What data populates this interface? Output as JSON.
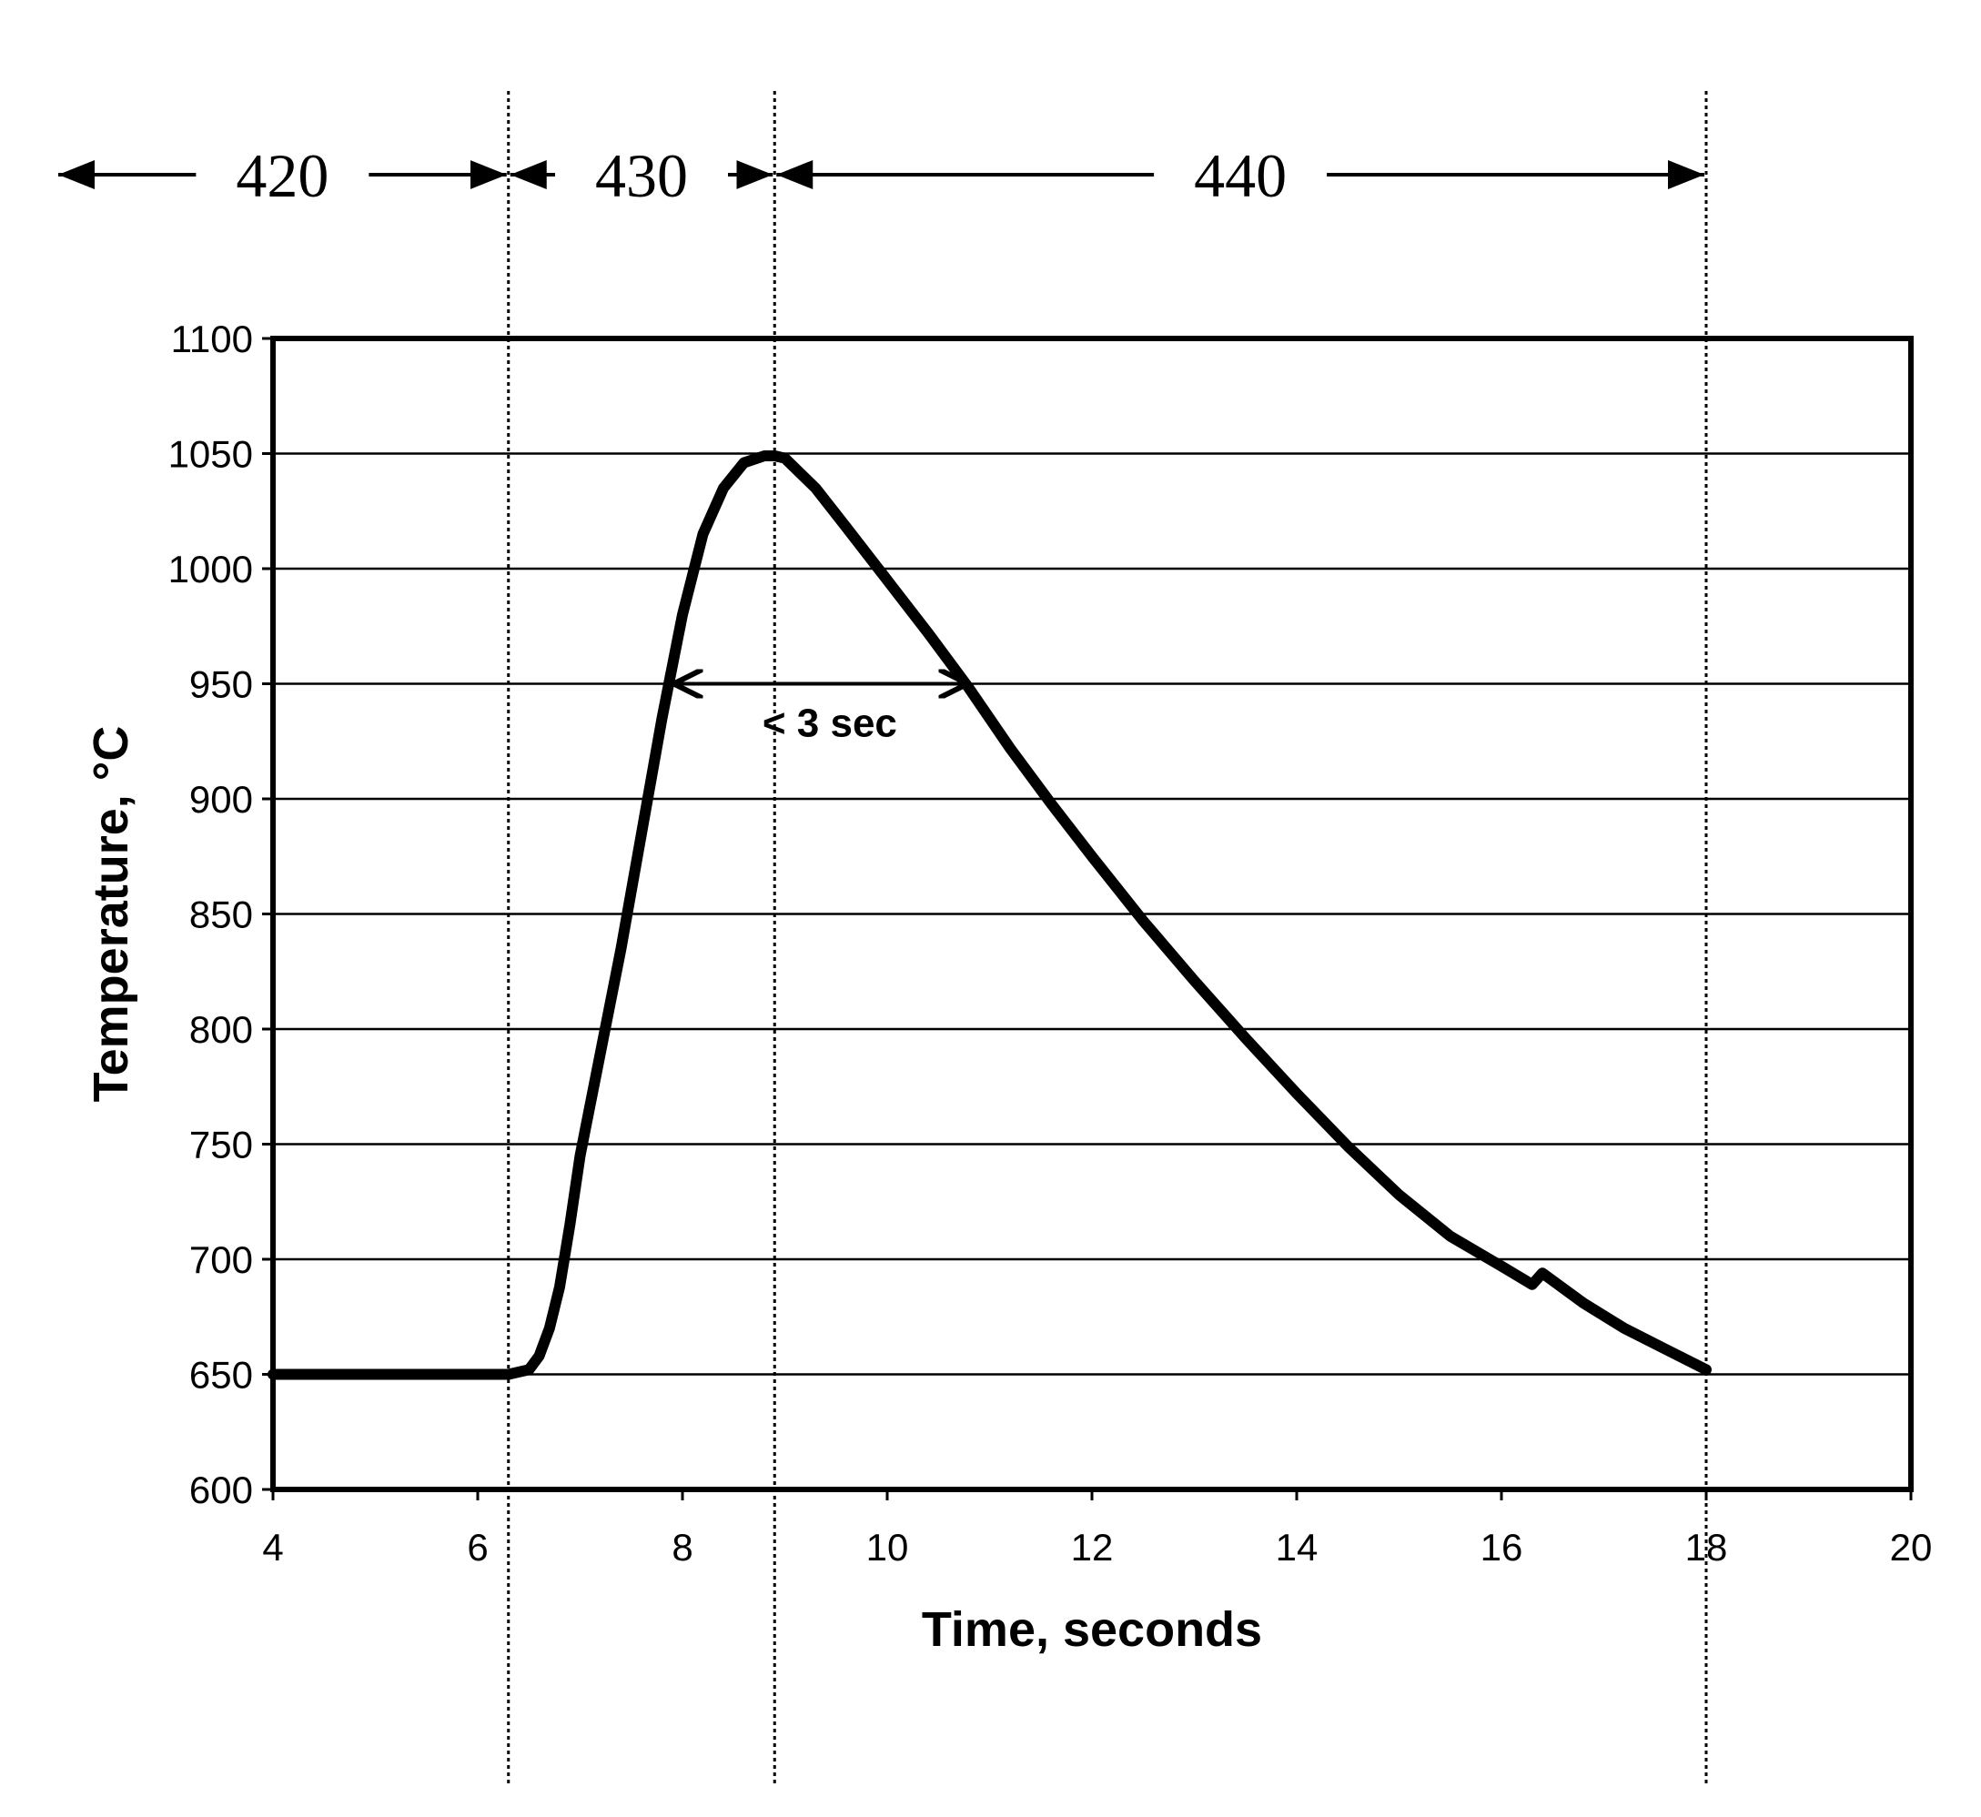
{
  "chart_data": {
    "type": "line",
    "title": "",
    "xlabel": "Time, seconds",
    "ylabel": "Temperature, °C",
    "xlim": [
      4,
      20
    ],
    "ylim": [
      600,
      1100
    ],
    "xticks": [
      4,
      6,
      8,
      10,
      12,
      14,
      16,
      18,
      20
    ],
    "yticks": [
      600,
      650,
      700,
      750,
      800,
      850,
      900,
      950,
      1000,
      1050,
      1100
    ],
    "grid": "horizontal",
    "legend": "none",
    "line_color": "#000000",
    "series": [
      {
        "x": [
          4.0,
          5.0,
          6.0,
          6.3,
          6.5,
          6.6,
          6.7,
          6.8,
          6.9,
          7.0,
          7.2,
          7.4,
          7.6,
          7.8,
          8.0,
          8.2,
          8.4,
          8.6,
          8.8,
          8.9,
          9.0,
          9.3,
          9.6,
          10.0,
          10.4,
          10.8,
          11.2,
          11.6,
          12.0,
          12.5,
          13.0,
          13.5,
          14.0,
          14.5,
          15.0,
          15.5,
          16.0,
          16.3,
          16.4,
          16.8,
          17.2,
          17.6,
          18.0
        ],
        "y": [
          650,
          650,
          650,
          650,
          652,
          658,
          670,
          688,
          715,
          745,
          790,
          835,
          885,
          935,
          980,
          1015,
          1035,
          1046,
          1049,
          1049,
          1048,
          1035,
          1018,
          995,
          972,
          948,
          922,
          898,
          875,
          847,
          821,
          796,
          772,
          749,
          728,
          710,
          697,
          689,
          694,
          681,
          670,
          661,
          652
        ]
      }
    ],
    "phase_markers": [
      {
        "label": "420",
        "x_start": 4.0,
        "x_end": 6.3
      },
      {
        "label": "430",
        "x_start": 6.3,
        "x_end": 8.9
      },
      {
        "label": "440",
        "x_start": 8.9,
        "x_end": 18.0
      }
    ],
    "phase_boundaries_x": [
      6.3,
      8.9,
      18.0
    ],
    "annotation": {
      "text": "< 3 sec",
      "y": 950,
      "x_start": 7.95,
      "x_end": 10.75
    }
  }
}
